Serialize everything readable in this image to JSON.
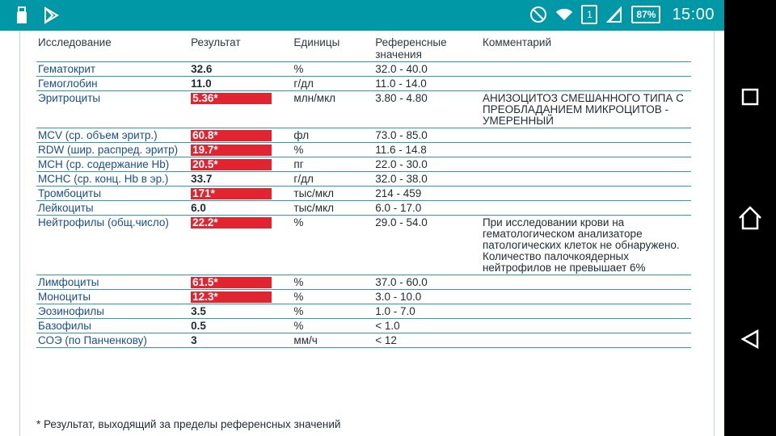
{
  "status_bar": {
    "time": "15:00",
    "battery": "87%",
    "sim": "1",
    "left_icons": [
      "usb-icon",
      "play-store-icon"
    ],
    "right_icons": [
      "do-not-disturb-icon",
      "wifi-icon",
      "sim-icon",
      "signal-icon",
      "battery-icon"
    ],
    "bg_color": "#0097a7"
  },
  "table": {
    "headers": {
      "name": "Исследование",
      "result": "Результат",
      "units": "Единицы",
      "reference": "Референсные значения",
      "comment": "Комментарий"
    },
    "rows": [
      {
        "name": "Гематокрит",
        "result": "32.6",
        "flag": false,
        "units": "%",
        "reference": "32.0 - 40.0",
        "comment": ""
      },
      {
        "name": "Гемоглобин",
        "result": "11.0",
        "flag": false,
        "units": "г/дл",
        "reference": "11.0 - 14.0",
        "comment": ""
      },
      {
        "name": "Эритроциты",
        "result": "5.36*",
        "flag": true,
        "units": "млн/мкл",
        "reference": "3.80 - 4.80",
        "comment": "АНИЗОЦИТОЗ СМЕШАННОГО ТИПА С ПРЕОБЛАДАНИЕМ МИКРОЦИТОВ - УМЕРЕННЫЙ"
      },
      {
        "name": "MCV (ср. объем эритр.)",
        "result": "60.8*",
        "flag": true,
        "units": "фл",
        "reference": "73.0 - 85.0",
        "comment": ""
      },
      {
        "name": "RDW (шир. распред. эритр)",
        "result": "19.7*",
        "flag": true,
        "units": "%",
        "reference": "11.6 - 14.8",
        "comment": ""
      },
      {
        "name": "MCH (ср. содержание Hb)",
        "result": "20.5*",
        "flag": true,
        "units": "пг",
        "reference": "22.0 - 30.0",
        "comment": ""
      },
      {
        "name": "MCHC (ср. конц. Hb в эр.)",
        "result": "33.7",
        "flag": false,
        "units": "г/дл",
        "reference": "32.0 - 38.0",
        "comment": ""
      },
      {
        "name": "Тромбоциты",
        "result": "171*",
        "flag": true,
        "units": "тыс/мкл",
        "reference": "214 - 459",
        "comment": ""
      },
      {
        "name": "Лейкоциты",
        "result": "6.0",
        "flag": false,
        "units": "тыс/мкл",
        "reference": "6.0 - 17.0",
        "comment": ""
      },
      {
        "name": "Нейтрофилы (общ.число)",
        "result": "22.2*",
        "flag": true,
        "units": "%",
        "reference": "29.0 - 54.0",
        "comment": "При исследовании крови на гематологическом анализаторе патологических клеток не обнаружено. Количество палочкоядерных нейтрофилов не превышает 6%"
      },
      {
        "name": "Лимфоциты",
        "result": "61.5*",
        "flag": true,
        "units": "%",
        "reference": "37.0 - 60.0",
        "comment": ""
      },
      {
        "name": "Моноциты",
        "result": "12.3*",
        "flag": true,
        "units": "%",
        "reference": "3.0 - 10.0",
        "comment": ""
      },
      {
        "name": "Эозинофилы",
        "result": "3.5",
        "flag": false,
        "units": "%",
        "reference": "1.0 - 7.0",
        "comment": ""
      },
      {
        "name": "Базофилы",
        "result": "0.5",
        "flag": false,
        "units": "%",
        "reference": "< 1.0",
        "comment": ""
      },
      {
        "name": "СОЭ (по Панченкову)",
        "result": "3",
        "flag": false,
        "units": "мм/ч",
        "reference": "< 12",
        "comment": ""
      }
    ]
  },
  "footnote": "* Результат, выходящий за пределы референсных значений",
  "nav_bar": {
    "buttons": [
      "recents-button",
      "home-button",
      "back-button"
    ]
  },
  "colors": {
    "accent": "#0097a7",
    "flag": "#e1242f",
    "name_text": "#1a4f8c",
    "row_line": "#2f9aa9"
  }
}
